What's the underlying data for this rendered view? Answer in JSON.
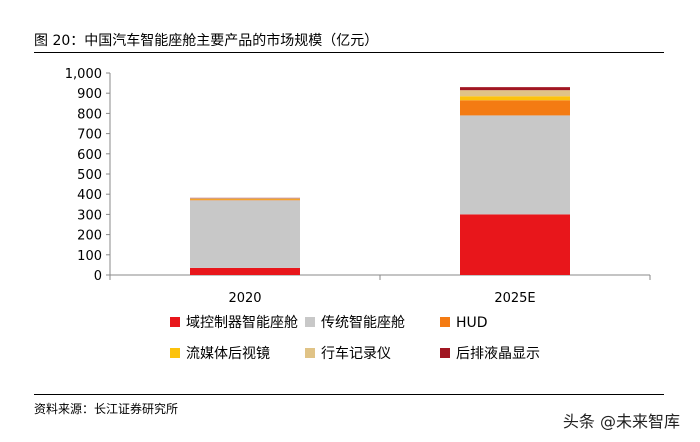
{
  "figure": {
    "title": "图 20：中国汽车智能座舱主要产品的市场规模（亿元）",
    "source": "资料来源：长江证券研究所",
    "watermark": "头条 @未来智库"
  },
  "chart_data": {
    "type": "bar",
    "stacked": true,
    "categories": [
      "2020",
      "2025E"
    ],
    "series": [
      {
        "name": "域控制器智能座舱",
        "color": "#e8161b",
        "values": [
          35,
          300
        ]
      },
      {
        "name": "传统智能座舱",
        "color": "#c8c8c8",
        "values": [
          335,
          490
        ]
      },
      {
        "name": "HUD",
        "color": "#f47b13",
        "values": [
          4,
          75
        ]
      },
      {
        "name": "流媒体后视镜",
        "color": "#fcc20c",
        "values": [
          2,
          20
        ]
      },
      {
        "name": "行车记录仪",
        "color": "#e0c386",
        "values": [
          4,
          30
        ]
      },
      {
        "name": "后排液晶显示",
        "color": "#a11622",
        "values": [
          2,
          15
        ]
      }
    ],
    "yticks": [
      "0",
      "100",
      "200",
      "300",
      "400",
      "500",
      "600",
      "700",
      "800",
      "900",
      "1,000"
    ],
    "ylim": [
      0,
      1000
    ],
    "grid": false,
    "legend_position": "bottom"
  }
}
